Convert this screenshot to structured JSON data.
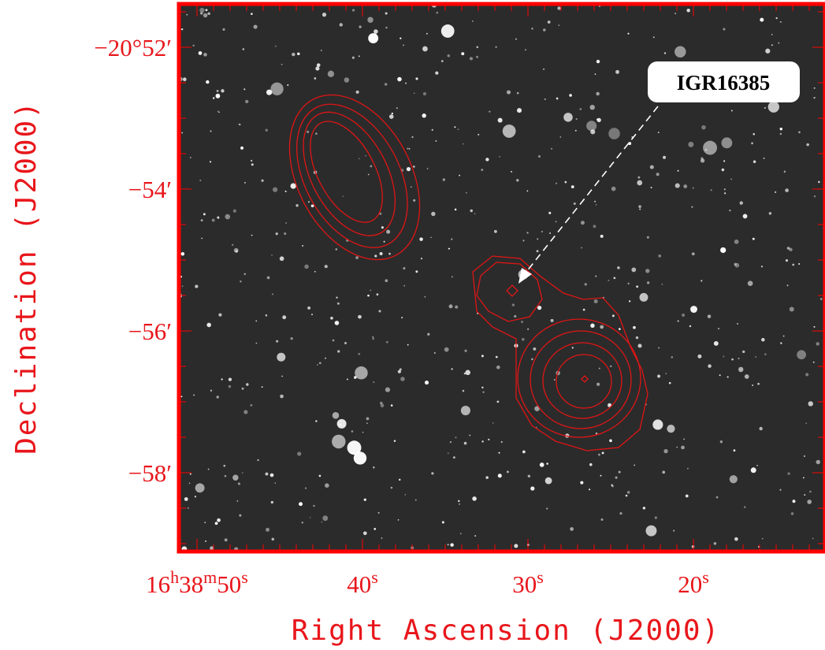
{
  "axes": {
    "y_label": "Declination (J2000)",
    "x_label": "Right Ascension (J2000)",
    "y_tick_labels": [
      "−20°52′",
      "−54′",
      "−56′",
      "−58′"
    ],
    "x_tick_labels": [
      [
        "16",
        "h",
        "38",
        "m",
        "50",
        "s"
      ],
      [
        "40",
        "s"
      ],
      [
        "30",
        "s"
      ],
      [
        "20",
        "s"
      ]
    ]
  },
  "annotation": {
    "label": "IGR16385"
  }
}
